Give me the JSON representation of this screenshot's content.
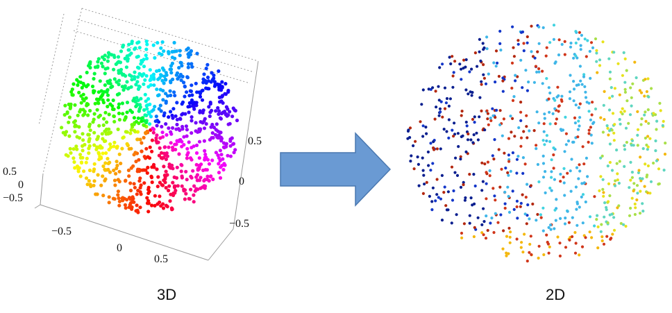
{
  "captions": {
    "left": "3D",
    "right": "2D"
  },
  "arrow": {
    "fill": "#6a9ad3",
    "stroke": "#4a78b0",
    "direction": "right"
  },
  "axes_3d": {
    "z_ticks": [
      "0.5",
      "0",
      "−0.5"
    ],
    "right_ticks": [
      "0.5",
      "0",
      "−0.5"
    ],
    "bottom_ticks": [
      "−0.5",
      "0",
      "0.5"
    ]
  },
  "point_clouds": {
    "left": {
      "shape": "sphere",
      "points": 1000,
      "palette": "hue-spectrum"
    },
    "right": {
      "shape": "flattened-disc",
      "points": 800,
      "palette": "jet"
    }
  }
}
